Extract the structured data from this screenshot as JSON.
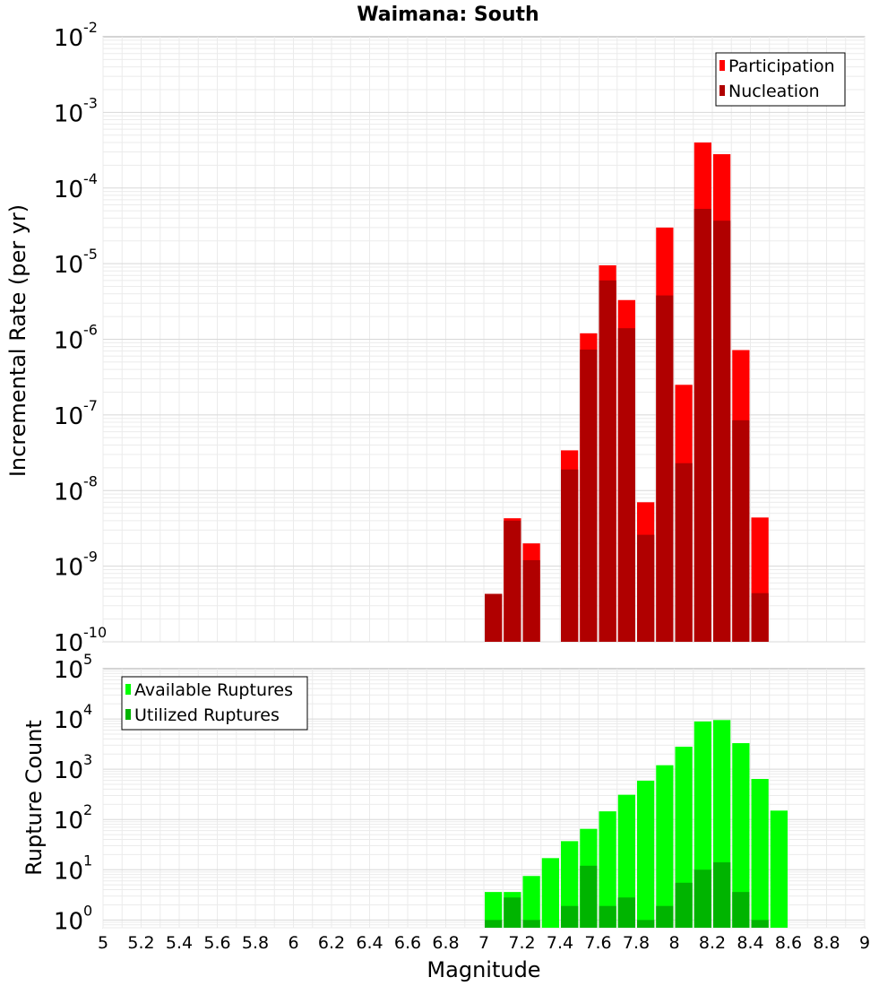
{
  "chart_data": [
    {
      "type": "bar",
      "title": "Waimana: South",
      "xlabel": "Magnitude",
      "ylabel": "Incremental Rate (per yr)",
      "yscale": "log",
      "ylim": [
        1e-10,
        0.01
      ],
      "xlim": [
        5,
        9
      ],
      "bin_width": 0.1,
      "grid": true,
      "legend_position": "top-right",
      "x": [
        7.0,
        7.1,
        7.2,
        7.4,
        7.5,
        7.6,
        7.7,
        7.8,
        7.9,
        8.0,
        8.1,
        8.2,
        8.3,
        8.4
      ],
      "series": [
        {
          "name": "Participation",
          "color": "#ff0000",
          "values": [
            4.3e-10,
            4.3e-09,
            2e-09,
            3.4e-08,
            1.2e-06,
            9.5e-06,
            3.3e-06,
            7e-09,
            3e-05,
            2.5e-07,
            0.0004,
            0.00028,
            7.2e-07,
            4.4e-09
          ]
        },
        {
          "name": "Nucleation",
          "color": "#b00000",
          "values": [
            4.3e-10,
            4e-09,
            1.2e-09,
            1.9e-08,
            7.3e-07,
            6e-06,
            1.4e-06,
            2.6e-09,
            3.8e-06,
            2.3e-08,
            5.3e-05,
            3.7e-05,
            8.5e-08,
            4.4e-10
          ]
        }
      ]
    },
    {
      "type": "bar",
      "title": "",
      "xlabel": "Magnitude",
      "ylabel": "Rupture Count",
      "yscale": "log",
      "ylim": [
        0.7,
        100000.0
      ],
      "xlim": [
        5,
        9
      ],
      "bin_width": 0.1,
      "grid": true,
      "legend_position": "top-left",
      "x": [
        7.0,
        7.1,
        7.2,
        7.3,
        7.4,
        7.5,
        7.6,
        7.7,
        7.8,
        7.9,
        8.0,
        8.1,
        8.2,
        8.3,
        8.4,
        8.5
      ],
      "series": [
        {
          "name": "Available Ruptures",
          "color": "#00ff00",
          "values": [
            3.6,
            3.6,
            7.5,
            17,
            37,
            65,
            145,
            310,
            590,
            1200,
            2800,
            8900,
            9500,
            3300,
            640,
            150
          ]
        },
        {
          "name": "Utilized Ruptures",
          "color": "#00b400",
          "values": [
            1,
            2.8,
            1,
            0,
            1.9,
            12,
            1.9,
            2.8,
            1,
            1.9,
            5.5,
            10,
            14,
            3.6,
            1,
            0
          ]
        }
      ]
    }
  ],
  "x_ticks": [
    "5",
    "5.2",
    "5.4",
    "5.6",
    "5.8",
    "6",
    "6.2",
    "6.4",
    "6.6",
    "6.8",
    "7",
    "7.2",
    "7.4",
    "7.6",
    "7.8",
    "8",
    "8.2",
    "8.4",
    "8.6",
    "8.8",
    "9"
  ],
  "top_y_ticks": [
    {
      "base": "10",
      "exp": "-10"
    },
    {
      "base": "10",
      "exp": "-9"
    },
    {
      "base": "10",
      "exp": "-8"
    },
    {
      "base": "10",
      "exp": "-7"
    },
    {
      "base": "10",
      "exp": "-6"
    },
    {
      "base": "10",
      "exp": "-5"
    },
    {
      "base": "10",
      "exp": "-4"
    },
    {
      "base": "10",
      "exp": "-3"
    },
    {
      "base": "10",
      "exp": "-2"
    }
  ],
  "bottom_y_ticks": [
    {
      "base": "10",
      "exp": "0"
    },
    {
      "base": "10",
      "exp": "1"
    },
    {
      "base": "10",
      "exp": "2"
    },
    {
      "base": "10",
      "exp": "3"
    },
    {
      "base": "10",
      "exp": "4"
    },
    {
      "base": "10",
      "exp": "5"
    }
  ]
}
